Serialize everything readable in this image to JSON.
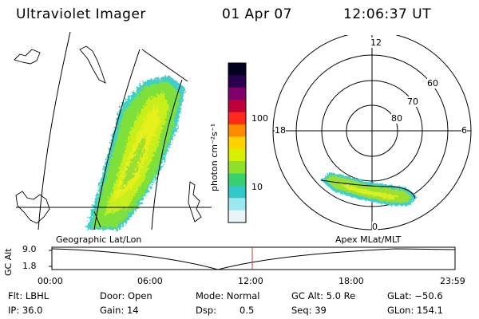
{
  "header": {
    "title": "Ultraviolet Imager",
    "date": "01 Apr 07",
    "time": "12:06:37 UT"
  },
  "colorbar": {
    "label": "photon cm⁻²s⁻¹",
    "tick_100": "100",
    "tick_10": "10",
    "colors": [
      "#000020",
      "#2a0050",
      "#80006a",
      "#c0003a",
      "#ff2a1a",
      "#ff8a00",
      "#ffd200",
      "#d8f000",
      "#8ee02a",
      "#38d070",
      "#30c8c8",
      "#9ae8f0",
      "#e8f4f8"
    ]
  },
  "polar_plot": {
    "label_top": "12",
    "label_left": "18",
    "label_right": "6",
    "label_bottom": "0",
    "ring_60": "60",
    "ring_70": "70",
    "ring_80": "80"
  },
  "altitude_plot": {
    "left_label": "Geographic Lat/Lon",
    "right_label": "Apex MLat/MLT",
    "ylabel": "GC Alt",
    "ytick_top": "9.0",
    "ytick_bottom": "1.8",
    "time_ticks": [
      "00:00",
      "06:00",
      "12:00",
      "18:00",
      "23:59"
    ],
    "marker_color": "#c0392b"
  },
  "info": {
    "row1": {
      "flt": "Flt: LBHL",
      "door": "Door: Open",
      "mode": "Mode: Normal",
      "gcalt": "GC Alt: 5.0 Re",
      "glat": "GLat: −50.6"
    },
    "row2": {
      "ip": "IP: 36.0",
      "gain": "Gain: 14",
      "dsp_label": "Dsp:",
      "dsp_value": "0.5",
      "seq": "Seq: 39",
      "glon": "GLon: 154.1"
    }
  }
}
